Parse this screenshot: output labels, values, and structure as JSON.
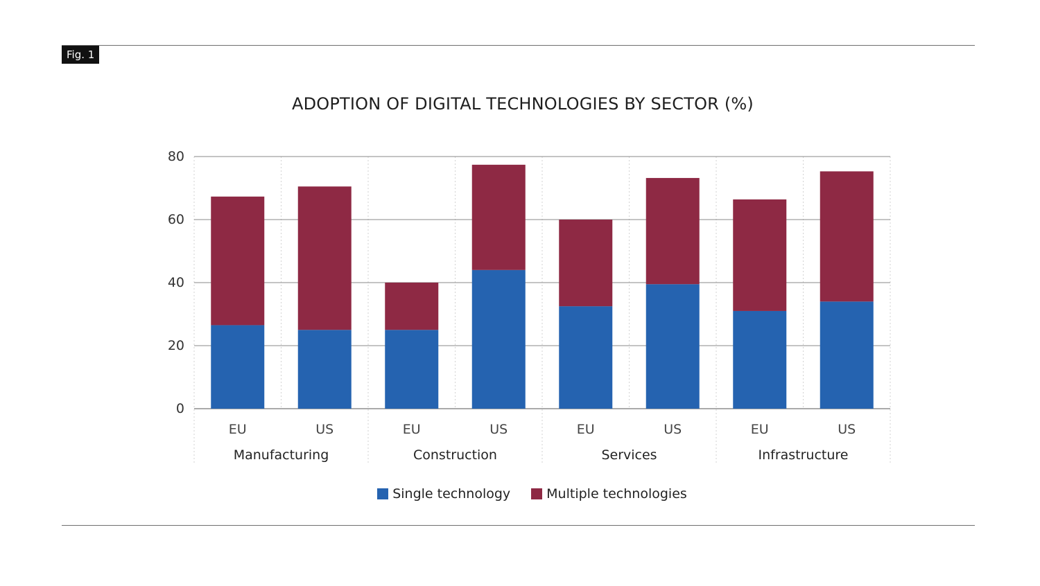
{
  "figure_label": "Fig. 1",
  "colors": {
    "single": "#2563b0",
    "multiple": "#8e2944"
  },
  "chart_data": {
    "type": "bar",
    "stacked": true,
    "title": "ADOPTION OF DIGITAL TECHNOLOGIES BY SECTOR (%)",
    "xlabel": "",
    "ylabel": "",
    "ylim": [
      0,
      80
    ],
    "yticks": [
      0,
      20,
      40,
      60,
      80
    ],
    "groups": [
      "Manufacturing",
      "Construction",
      "Services",
      "Infrastructure"
    ],
    "categories": [
      "EU",
      "US",
      "EU",
      "US",
      "EU",
      "US",
      "EU",
      "US"
    ],
    "series": [
      {
        "name": "Single technology",
        "values": [
          26.5,
          25,
          25,
          44,
          32.5,
          39.5,
          31,
          34
        ]
      },
      {
        "name": "Multiple technologies",
        "values": [
          40.8,
          45.5,
          15,
          33.4,
          27.5,
          33.7,
          35.4,
          41.3
        ]
      }
    ],
    "grid": true,
    "legend_position": "bottom"
  }
}
